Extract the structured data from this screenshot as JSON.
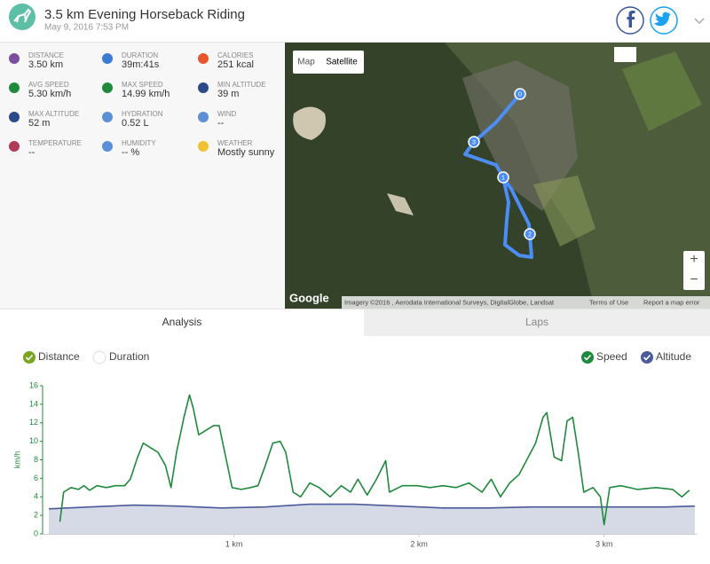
{
  "header": {
    "title": "3.5 km Evening Horseback Riding",
    "date": "May 9, 2016 7:53 PM"
  },
  "stats": [
    {
      "label": "DISTANCE",
      "value": "3.50 km"
    },
    {
      "label": "DURATION",
      "value": "39m:41s"
    },
    {
      "label": "CALORIES",
      "value": "251 kcal"
    },
    {
      "label": "AVG SPEED",
      "value": "5.30 km/h"
    },
    {
      "label": "MAX SPEED",
      "value": "14.99 km/h"
    },
    {
      "label": "MIN ALTITUDE",
      "value": "39 m"
    },
    {
      "label": "MAX ALTITUDE",
      "value": "52 m"
    },
    {
      "label": "HYDRATION",
      "value": "0.52 L"
    },
    {
      "label": "WIND",
      "value": "--"
    },
    {
      "label": "TEMPERATURE",
      "value": "--"
    },
    {
      "label": "HUMIDITY",
      "value": "-- %"
    },
    {
      "label": "WEATHER",
      "value": "Mostly sunny"
    }
  ],
  "map": {
    "map_button": "Map",
    "satellite_button": "Satellite",
    "logo": "Google",
    "attribution": "Imagery ©2016 , Aerodata International Surveys, DigitalGlobe, Landsat",
    "terms": "Terms of Use",
    "report": "Report a map error",
    "zoom_in": "+",
    "zoom_out": "−",
    "markers": [
      "0",
      "1",
      "2",
      "3"
    ]
  },
  "tabs": [
    "Analysis",
    "Laps"
  ],
  "toggles": {
    "x_axis": [
      "Distance",
      "Duration"
    ]
  },
  "chart_data": {
    "type": "line",
    "y_label": "km/h",
    "xlim": [
      0,
      3.5
    ],
    "ylim": [
      0,
      16
    ],
    "xticks": [
      {
        "value": 1,
        "label": "1 km"
      },
      {
        "value": 2,
        "label": "2 km"
      },
      {
        "value": 3,
        "label": "3 km"
      }
    ],
    "yticks": [
      0,
      2,
      4,
      6,
      8,
      10,
      12,
      14,
      16
    ],
    "series": [
      {
        "name": "Speed",
        "color": "#1f8a3c",
        "x": [
          0.06,
          0.08,
          0.12,
          0.16,
          0.19,
          0.22,
          0.26,
          0.31,
          0.36,
          0.41,
          0.44,
          0.48,
          0.51,
          0.55,
          0.59,
          0.63,
          0.66,
          0.69,
          0.73,
          0.76,
          0.78,
          0.81,
          0.85,
          0.89,
          0.92,
          0.96,
          0.99,
          1.04,
          1.09,
          1.13,
          1.17,
          1.21,
          1.25,
          1.28,
          1.32,
          1.36,
          1.41,
          1.46,
          1.52,
          1.58,
          1.63,
          1.67,
          1.72,
          1.77,
          1.82,
          1.84,
          1.91,
          1.99,
          2.06,
          2.13,
          2.2,
          2.27,
          2.34,
          2.39,
          2.44,
          2.49,
          2.54,
          2.58,
          2.63,
          2.67,
          2.69,
          2.73,
          2.77,
          2.8,
          2.83,
          2.86,
          2.89,
          2.94,
          2.98,
          3.0,
          3.03,
          3.09,
          3.18,
          3.28,
          3.37,
          3.42,
          3.46
        ],
        "values": [
          1.3,
          4.5,
          5.0,
          4.8,
          5.2,
          4.7,
          5.2,
          5.0,
          5.2,
          5.2,
          5.9,
          8.3,
          9.8,
          9.3,
          8.8,
          7.4,
          5.0,
          8.8,
          12.6,
          15.0,
          13.6,
          10.7,
          11.2,
          11.7,
          11.7,
          7.9,
          5.0,
          4.8,
          5.0,
          5.2,
          7.4,
          9.8,
          10.0,
          8.8,
          4.5,
          4.0,
          5.5,
          5.0,
          4.0,
          5.2,
          4.5,
          5.9,
          4.2,
          5.9,
          7.9,
          4.5,
          5.2,
          5.2,
          5.0,
          5.2,
          5.0,
          5.5,
          4.5,
          5.9,
          4.0,
          5.5,
          6.4,
          7.9,
          9.8,
          12.6,
          13.1,
          8.3,
          7.9,
          12.2,
          12.6,
          8.8,
          4.5,
          5.0,
          4.0,
          1.0,
          5.0,
          5.2,
          4.8,
          5.0,
          4.8,
          4.0,
          4.7
        ]
      },
      {
        "name": "Altitude",
        "color": "#4b5a9b",
        "fill": "#d6dae7",
        "x": [
          0,
          0.22,
          0.46,
          0.69,
          0.93,
          1.17,
          1.41,
          1.65,
          1.89,
          2.13,
          2.37,
          2.61,
          2.85,
          3.09,
          3.33,
          3.49
        ],
        "values": [
          2.7,
          2.9,
          3.1,
          3.0,
          2.8,
          2.9,
          3.2,
          3.2,
          3.0,
          2.8,
          2.8,
          2.9,
          2.9,
          2.9,
          2.9,
          3.0
        ]
      }
    ]
  }
}
